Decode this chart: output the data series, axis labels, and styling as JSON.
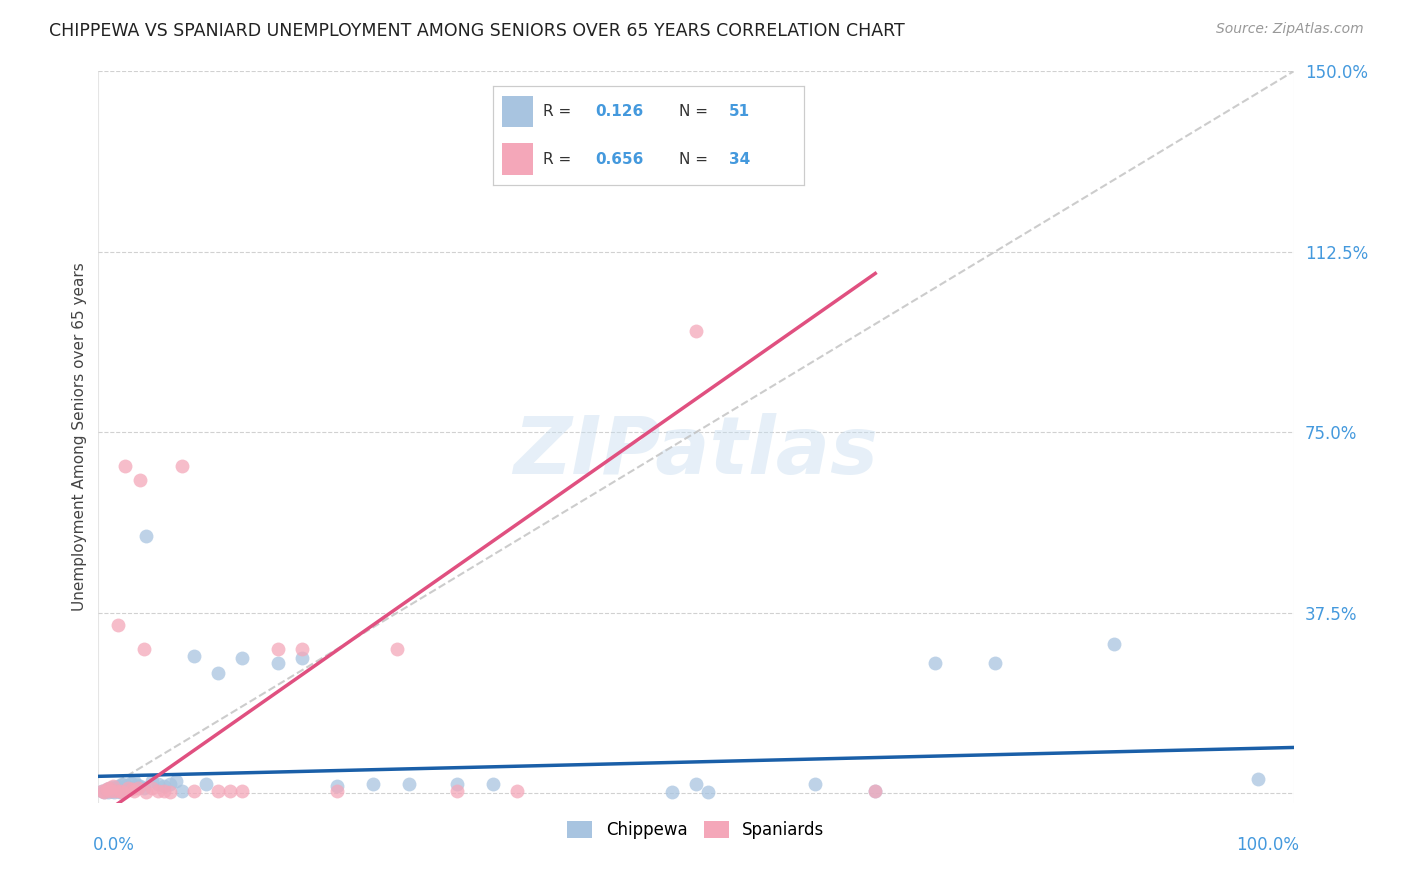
{
  "title": "CHIPPEWA VS SPANIARD UNEMPLOYMENT AMONG SENIORS OVER 65 YEARS CORRELATION CHART",
  "source": "Source: ZipAtlas.com",
  "ylabel": "Unemployment Among Seniors over 65 years",
  "yticks": [
    0.0,
    0.375,
    0.75,
    1.125,
    1.5
  ],
  "ytick_labels": [
    "",
    "37.5%",
    "75.0%",
    "112.5%",
    "150.0%"
  ],
  "xlim": [
    0.0,
    1.0
  ],
  "ylim": [
    -0.02,
    1.5
  ],
  "chippewa_color": "#a8c4e0",
  "spaniard_color": "#f4a7b9",
  "chippewa_line_color": "#1a5fa8",
  "spaniard_line_color": "#e05080",
  "diagonal_color": "#c0c0c0",
  "watermark": "ZIPatlas",
  "chippewa_x": [
    0.003,
    0.005,
    0.007,
    0.008,
    0.009,
    0.01,
    0.011,
    0.012,
    0.013,
    0.014,
    0.015,
    0.016,
    0.017,
    0.018,
    0.019,
    0.02,
    0.022,
    0.023,
    0.025,
    0.027,
    0.03,
    0.032,
    0.035,
    0.038,
    0.04,
    0.045,
    0.05,
    0.055,
    0.06,
    0.065,
    0.07,
    0.08,
    0.09,
    0.1,
    0.12,
    0.15,
    0.17,
    0.2,
    0.23,
    0.26,
    0.3,
    0.33,
    0.48,
    0.5,
    0.51,
    0.6,
    0.65,
    0.7,
    0.75,
    0.85,
    0.97
  ],
  "chippewa_y": [
    0.005,
    0.003,
    0.008,
    0.002,
    0.006,
    0.01,
    0.004,
    0.012,
    0.003,
    0.007,
    0.008,
    0.015,
    0.005,
    0.003,
    0.01,
    0.02,
    0.015,
    0.018,
    0.012,
    0.022,
    0.025,
    0.018,
    0.015,
    0.01,
    0.535,
    0.025,
    0.02,
    0.015,
    0.02,
    0.025,
    0.005,
    0.285,
    0.02,
    0.25,
    0.28,
    0.27,
    0.28,
    0.015,
    0.02,
    0.02,
    0.02,
    0.02,
    0.003,
    0.02,
    0.003,
    0.02,
    0.005,
    0.27,
    0.27,
    0.31,
    0.03
  ],
  "spaniard_x": [
    0.003,
    0.005,
    0.007,
    0.009,
    0.01,
    0.012,
    0.014,
    0.016,
    0.018,
    0.02,
    0.022,
    0.025,
    0.028,
    0.03,
    0.033,
    0.035,
    0.038,
    0.04,
    0.045,
    0.05,
    0.055,
    0.06,
    0.07,
    0.08,
    0.1,
    0.11,
    0.12,
    0.15,
    0.17,
    0.2,
    0.25,
    0.3,
    0.35,
    0.5,
    0.65
  ],
  "spaniard_y": [
    0.005,
    0.003,
    0.008,
    0.01,
    0.005,
    0.015,
    0.004,
    0.35,
    0.005,
    0.003,
    0.68,
    0.01,
    0.008,
    0.005,
    0.01,
    0.65,
    0.3,
    0.003,
    0.01,
    0.005,
    0.005,
    0.003,
    0.68,
    0.005,
    0.005,
    0.005,
    0.005,
    0.3,
    0.3,
    0.005,
    0.3,
    0.005,
    0.005,
    0.96,
    0.005
  ],
  "chip_line_x0": 0.0,
  "chip_line_x1": 1.0,
  "chip_line_y0": 0.035,
  "chip_line_y1": 0.095,
  "span_line_x0": 0.0,
  "span_line_x1": 0.65,
  "span_line_y0": -0.05,
  "span_line_y1": 1.08
}
